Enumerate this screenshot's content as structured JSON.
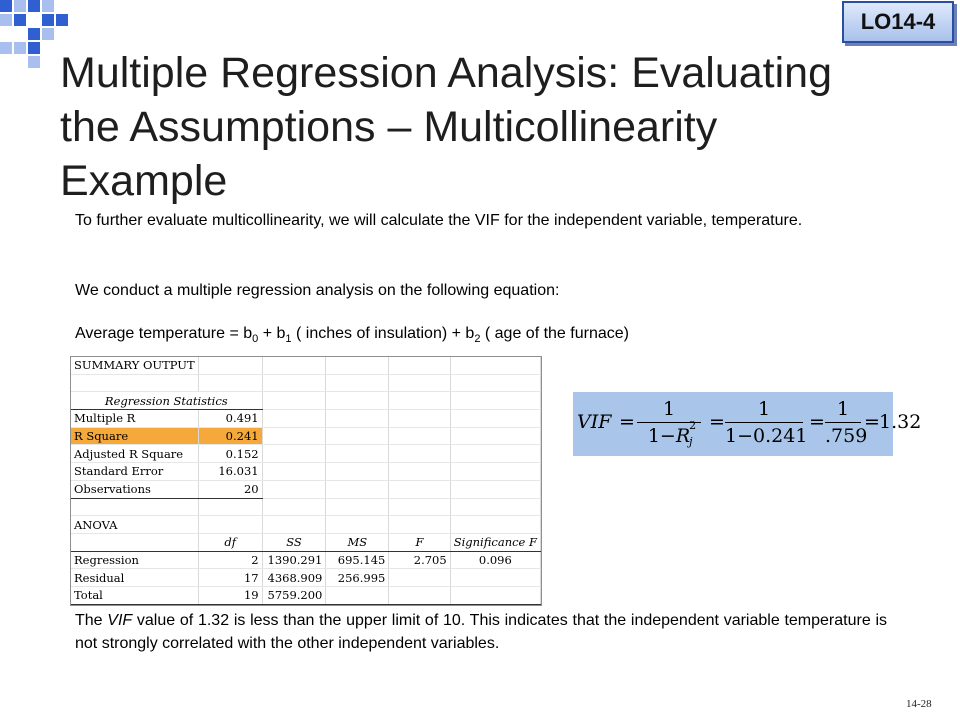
{
  "badge": "LO14-4",
  "title_lines": [
    "Multiple Regression Analysis: Evaluating",
    "the Assumptions – Multicollinearity",
    "Example"
  ],
  "intro_text": "To further evaluate multicollinearity, we will calculate the VIF for the independent variable, temperature.",
  "conduct_text": "We conduct a multiple regression analysis on the following equation:",
  "equation": {
    "lhs": "Average temperature = b",
    "s0": "0",
    "mid1": " + b",
    "s1": "1",
    "mid2": " ( inches of insulation) + b",
    "s2": "2",
    "end": " ( age of the furnace)"
  },
  "summary": {
    "heading": "SUMMARY OUTPUT",
    "reg_stats_heading": "Regression Statistics",
    "stats": [
      {
        "label": "Multiple R",
        "value": "0.491"
      },
      {
        "label": "R Square",
        "value": "0.241"
      },
      {
        "label": "Adjusted R Square",
        "value": "0.152"
      },
      {
        "label": "Standard Error",
        "value": "16.031"
      },
      {
        "label": "Observations",
        "value": "20"
      }
    ],
    "anova_heading": "ANOVA",
    "anova_headers": [
      "df",
      "SS",
      "MS",
      "F",
      "Significance F"
    ],
    "anova_rows": [
      {
        "label": "Regression",
        "df": "2",
        "ss": "1390.291",
        "ms": "695.145",
        "f": "2.705",
        "sig": "0.096"
      },
      {
        "label": "Residual",
        "df": "17",
        "ss": "4368.909",
        "ms": "256.995",
        "f": "",
        "sig": ""
      },
      {
        "label": "Total",
        "df": "19",
        "ss": "5759.200",
        "ms": "",
        "f": "",
        "sig": ""
      }
    ]
  },
  "vif_formula": {
    "lhs": "VIF",
    "eq": "=",
    "one": "1",
    "den1_a": "1−",
    "den1_r": "R",
    "den1_sup": "2",
    "den1_sub": "j",
    "den2": "1−0.241",
    "den3": ".759",
    "result": "1.32"
  },
  "conclusion": {
    "a": "The ",
    "vif": "VIF",
    "b": " value of 1.32 is less than the upper limit of 10. This indicates that the independent variable temperature is not strongly correlated with the other independent variables."
  },
  "page_number": "14-28",
  "colors": {
    "highlight": "#f6a93b",
    "formula_bg": "#a9c5ea",
    "accent_blue": "#2f5fd0"
  }
}
